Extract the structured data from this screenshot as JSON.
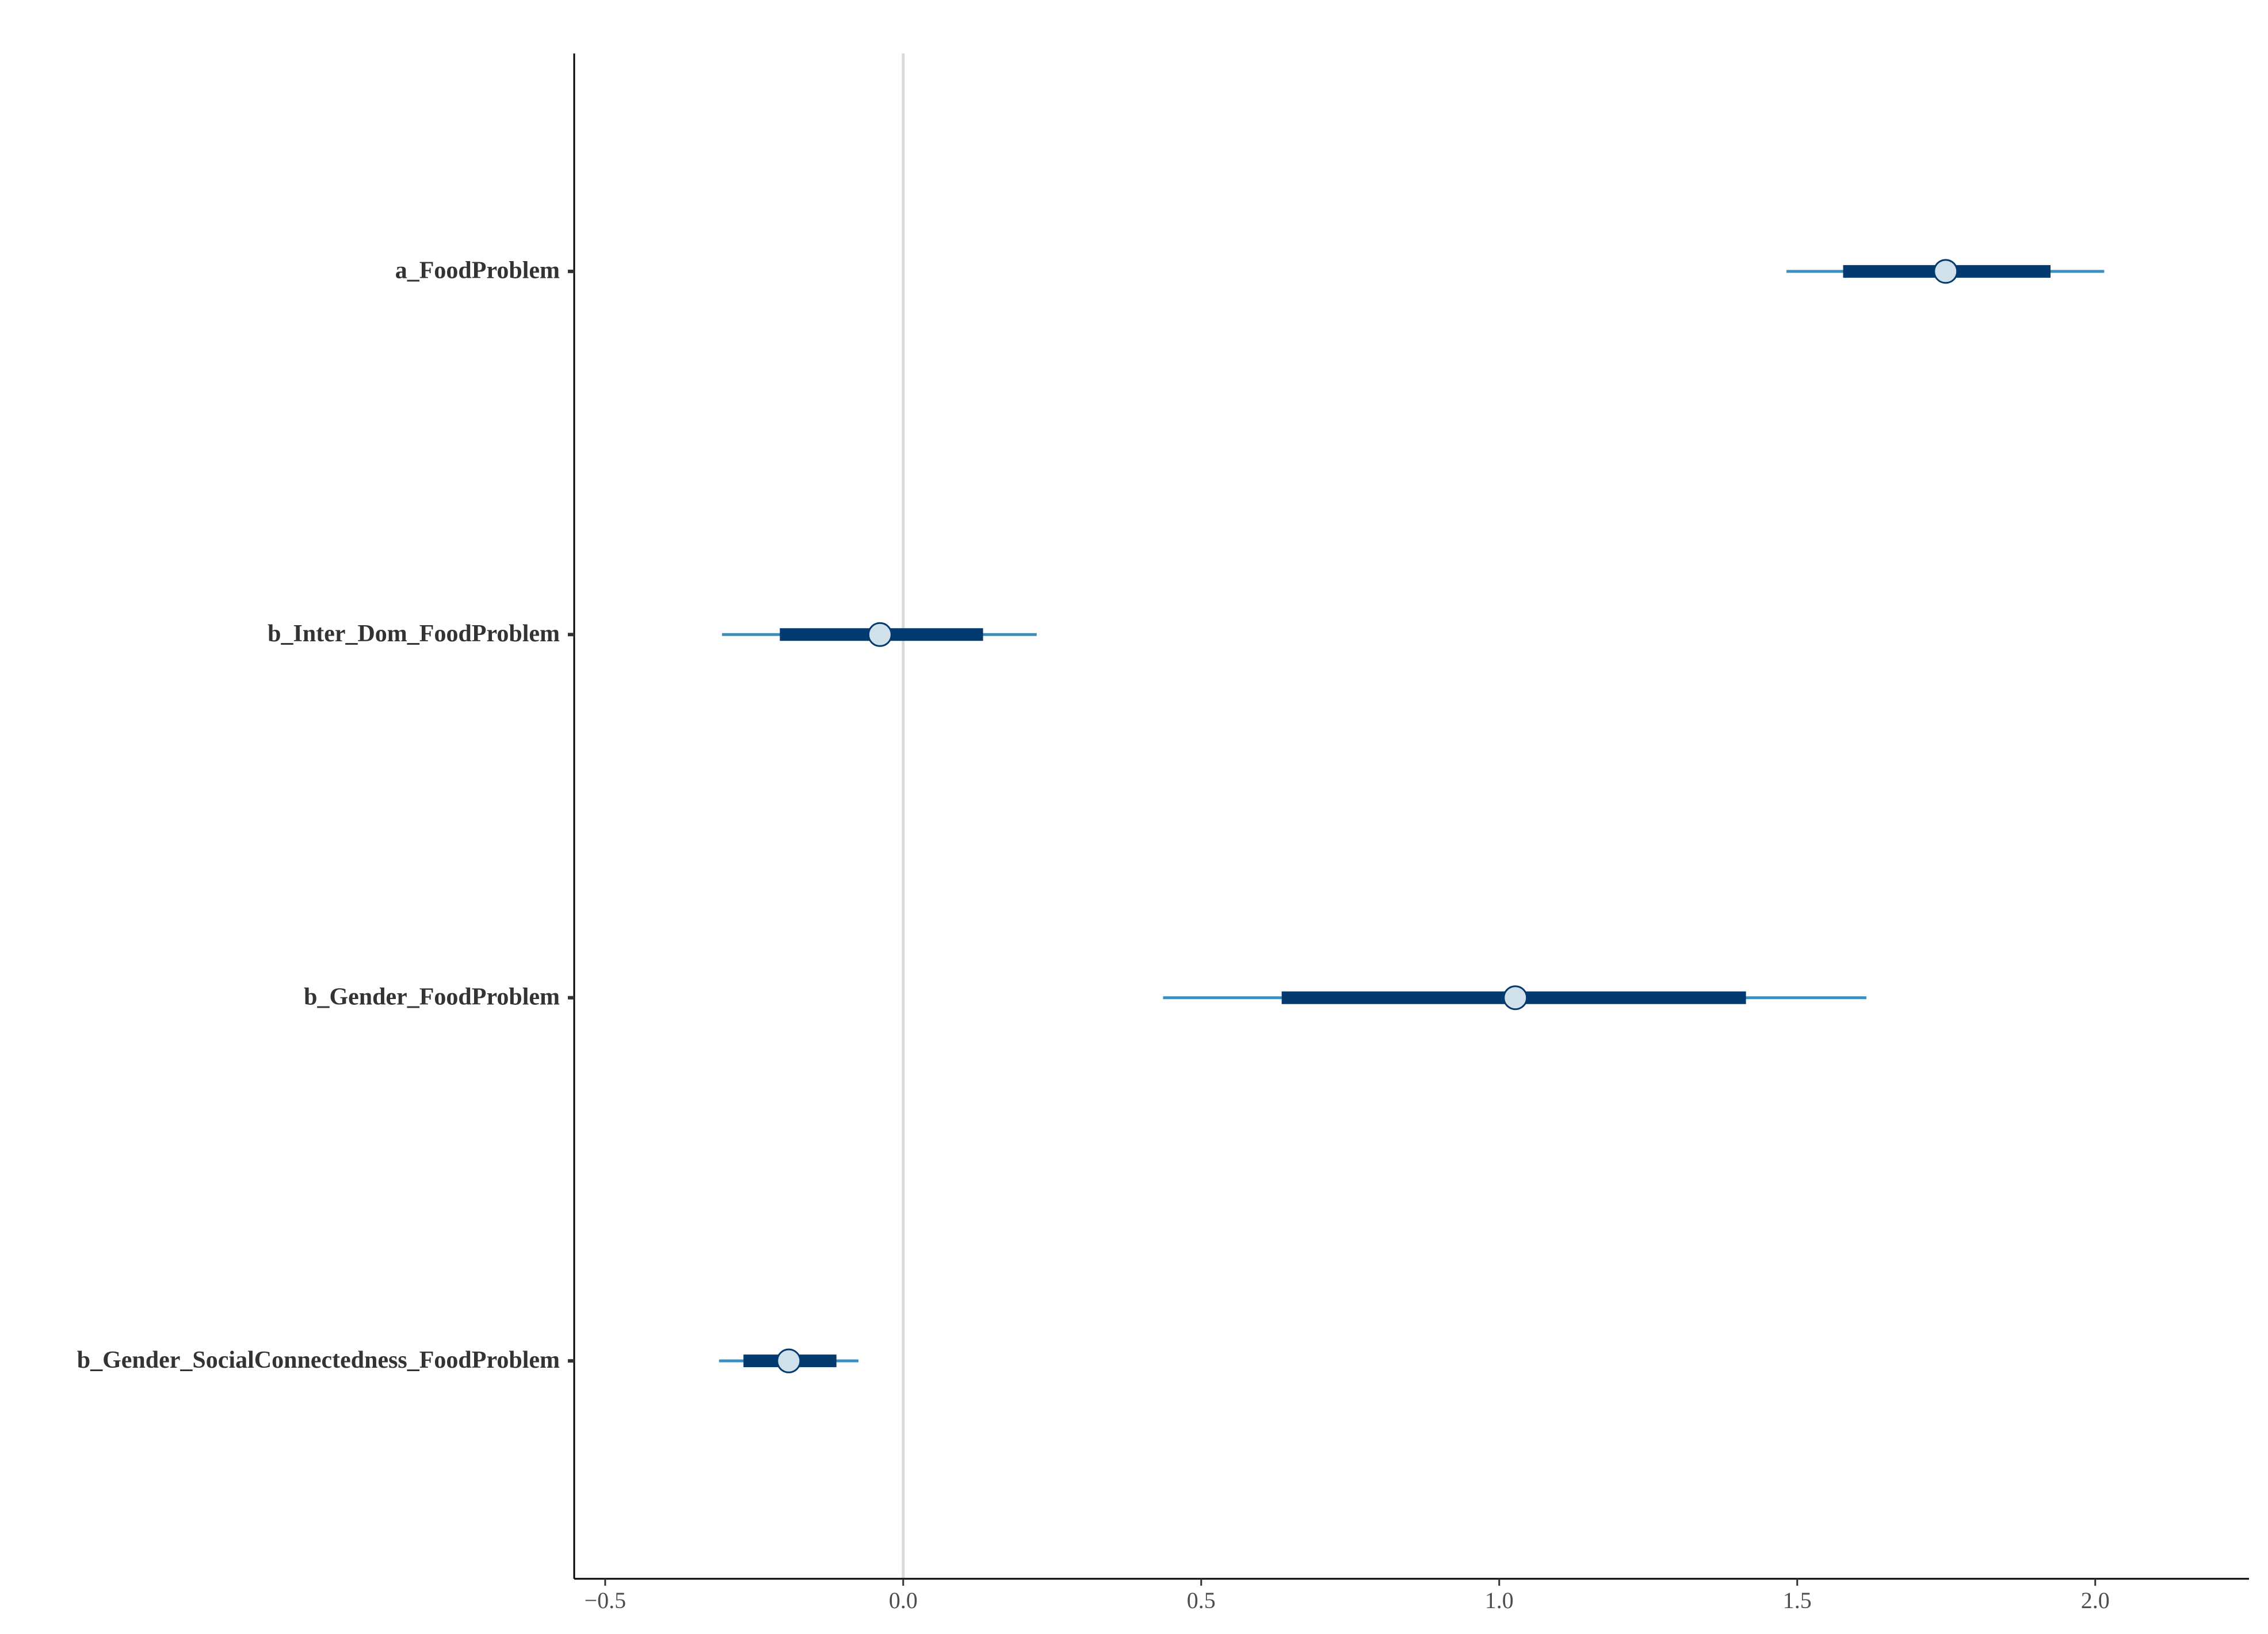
{
  "chart_data": {
    "type": "interval",
    "categories": [
      "a_FoodProblem",
      "b_Inter_Dom_FoodProblem",
      "b_Gender_FoodProblem",
      "b_Gender_SocialConnectedness_FoodProblem"
    ],
    "outer_low": [
      1.482,
      -0.304,
      0.436,
      -0.309
    ],
    "inner_low": [
      1.577,
      -0.207,
      0.635,
      -0.268
    ],
    "values": [
      1.749,
      -0.039,
      1.027,
      -0.192
    ],
    "inner_high": [
      1.925,
      0.134,
      1.414,
      -0.112
    ],
    "outer_high": [
      2.015,
      0.224,
      1.616,
      -0.075
    ],
    "outer_color": "#3a8fc1",
    "inner_color": "#033a6f",
    "point_color": "#d1e1ec",
    "vline": 0,
    "vline_color": "#d9d9d9",
    "xlim": [
      -0.552,
      2.258
    ],
    "xticks": [
      {
        "value": -0.5,
        "label": "−0.5"
      },
      {
        "value": 0,
        "label": "0.0"
      },
      0.5,
      {
        "value": 1,
        "label": "1.0"
      },
      1.5,
      {
        "value": 2,
        "label": "2.0"
      }
    ]
  }
}
